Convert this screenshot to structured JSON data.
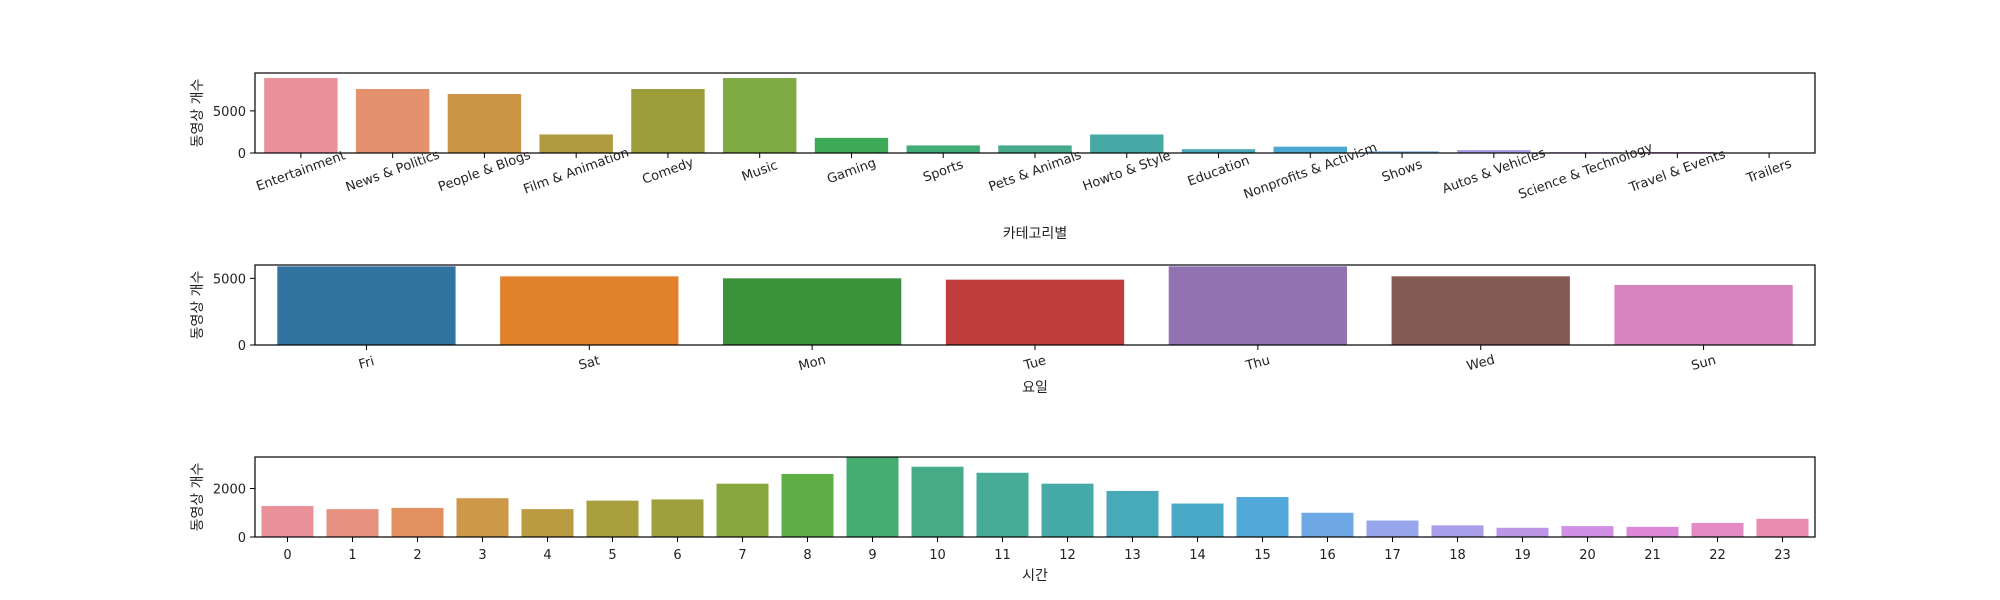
{
  "chart_data": [
    {
      "type": "bar",
      "xlabel": "카테고리별",
      "ylabel": "동영상 개수",
      "ylim": [
        0,
        9500
      ],
      "yticks": [
        0,
        5000
      ],
      "categories": [
        "Entertainment",
        "News & Politics",
        "People & Blogs",
        "Film & Animation",
        "Comedy",
        "Music",
        "Gaming",
        "Sports",
        "Pets & Animals",
        "Howto & Style",
        "Education",
        "Nonprofits & Activism",
        "Shows",
        "Autos & Vehicles",
        "Science & Technology",
        "Travel & Events",
        "Trailers"
      ],
      "values": [
        8900,
        7600,
        7000,
        2200,
        7600,
        8900,
        1800,
        900,
        900,
        2200,
        450,
        750,
        200,
        350,
        100,
        120,
        20
      ],
      "colors": [
        "#e8919b",
        "#e4916f",
        "#cb9545",
        "#b09a3f",
        "#9c9e3c",
        "#7fab45",
        "#3daa58",
        "#42ab78",
        "#45a98a",
        "#47a9a6",
        "#4aa8b9",
        "#4aa7d0",
        "#7aa9e8",
        "#a99de9",
        "#c993e5",
        "#e487d6",
        "#e98ab8"
      ],
      "xtick_rotation": -20,
      "grid": false
    },
    {
      "type": "bar",
      "xlabel": "요일",
      "ylabel": "동영상 개수",
      "ylim": [
        0,
        6000
      ],
      "yticks": [
        0,
        5000
      ],
      "categories": [
        "Fri",
        "Sat",
        "Mon",
        "Tue",
        "Thu",
        "Wed",
        "Sun"
      ],
      "values": [
        5900,
        5150,
        5000,
        4900,
        5900,
        5150,
        4500
      ],
      "colors": [
        "#3274a1",
        "#e1812c",
        "#3a923a",
        "#c03d3e",
        "#9372b2",
        "#845b53",
        "#d684bd"
      ],
      "xtick_rotation": -15,
      "grid": false
    },
    {
      "type": "bar",
      "xlabel": "시간",
      "ylabel": "동영상 개수",
      "ylim": [
        0,
        3300
      ],
      "yticks": [
        0,
        2000
      ],
      "categories": [
        "0",
        "1",
        "2",
        "3",
        "4",
        "5",
        "6",
        "7",
        "8",
        "9",
        "10",
        "11",
        "12",
        "13",
        "14",
        "15",
        "16",
        "17",
        "18",
        "19",
        "20",
        "21",
        "22",
        "23"
      ],
      "values": [
        1280,
        1150,
        1200,
        1600,
        1150,
        1500,
        1550,
        2200,
        2600,
        3300,
        2900,
        2650,
        2200,
        1900,
        1380,
        1650,
        1000,
        680,
        480,
        380,
        450,
        420,
        580,
        750
      ],
      "colors": [
        "#e8919b",
        "#e6907f",
        "#e0915f",
        "#cd9949",
        "#b99c41",
        "#a99e3d",
        "#9ea03e",
        "#88a73f",
        "#5cae45",
        "#45ad70",
        "#45ac87",
        "#46ac98",
        "#46aba8",
        "#48aab8",
        "#4aa9c7",
        "#52a8d8",
        "#6ea9e5",
        "#97a5ea",
        "#a99eea",
        "#bd96e8",
        "#cf8fe3",
        "#de89d8",
        "#e48bc6",
        "#e98db0"
      ],
      "xtick_rotation": 0,
      "grid": false
    }
  ]
}
